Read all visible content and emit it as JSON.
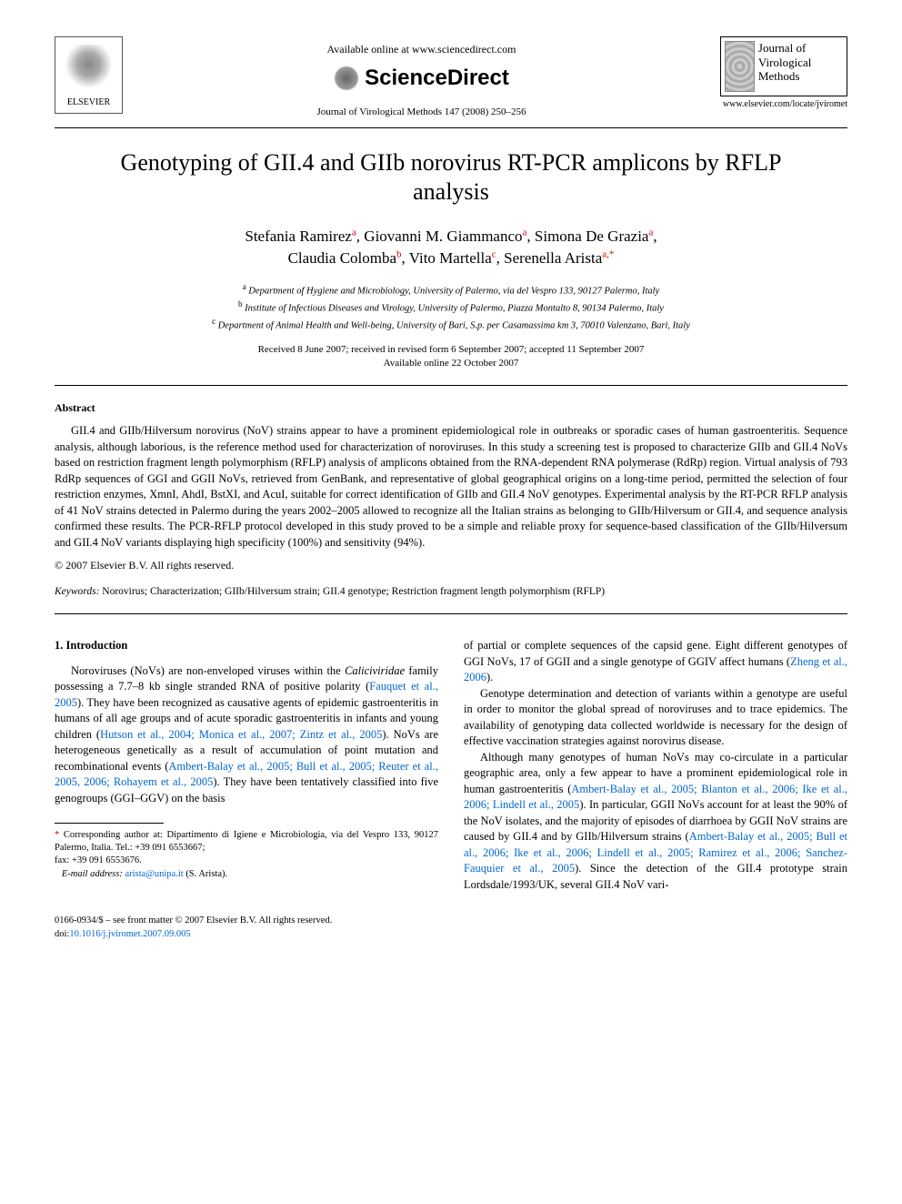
{
  "header": {
    "publisher_name": "ELSEVIER",
    "available_text": "Available online at www.sciencedirect.com",
    "sd_brand": "ScienceDirect",
    "journal_ref": "Journal of Virological Methods 147 (2008) 250–256",
    "journal_box_title": "Journal of Virological Methods",
    "journal_url": "www.elsevier.com/locate/jviromet"
  },
  "title": "Genotyping of GII.4 and GIIb norovirus RT-PCR amplicons by RFLP analysis",
  "authors": [
    {
      "name": "Stefania Ramirez",
      "sup": "a"
    },
    {
      "name": "Giovanni M. Giammanco",
      "sup": "a"
    },
    {
      "name": "Simona De Grazia",
      "sup": "a"
    },
    {
      "name": "Claudia Colomba",
      "sup": "b"
    },
    {
      "name": "Vito Martella",
      "sup": "c"
    },
    {
      "name": "Serenella Arista",
      "sup": "a,",
      "star": true
    }
  ],
  "affiliations": [
    {
      "sup": "a",
      "text": "Department of Hygiene and Microbiology, University of Palermo, via del Vespro 133, 90127 Palermo, Italy"
    },
    {
      "sup": "b",
      "text": "Institute of Infectious Diseases and Virology, University of Palermo, Piazza Montalto 8, 90134 Palermo, Italy"
    },
    {
      "sup": "c",
      "text": "Department of Animal Health and Well-being, University of Bari, S.p. per Casamassima km 3, 70010 Valenzano, Bari, Italy"
    }
  ],
  "dates": {
    "line1": "Received 8 June 2007; received in revised form 6 September 2007; accepted 11 September 2007",
    "line2": "Available online 22 October 2007"
  },
  "abstract": {
    "heading": "Abstract",
    "text": "GII.4 and GIIb/Hilversum norovirus (NoV) strains appear to have a prominent epidemiological role in outbreaks or sporadic cases of human gastroenteritis. Sequence analysis, although laborious, is the reference method used for characterization of noroviruses. In this study a screening test is proposed to characterize GIIb and GII.4 NoVs based on restriction fragment length polymorphism (RFLP) analysis of amplicons obtained from the RNA-dependent RNA polymerase (RdRp) region. Virtual analysis of 793 RdRp sequences of GGI and GGII NoVs, retrieved from GenBank, and representative of global geographical origins on a long-time period, permitted the selection of four restriction enzymes, XmnI, AhdI, BstXI, and AcuI, suitable for correct identification of GIIb and GII.4 NoV genotypes. Experimental analysis by the RT-PCR RFLP analysis of 41 NoV strains detected in Palermo during the years 2002–2005 allowed to recognize all the Italian strains as belonging to GIIb/Hilversum or GII.4, and sequence analysis confirmed these results. The PCR-RFLP protocol developed in this study proved to be a simple and reliable proxy for sequence-based classification of the GIIb/Hilversum and GII.4 NoV variants displaying high specificity (100%) and sensitivity (94%).",
    "copyright": "© 2007 Elsevier B.V. All rights reserved."
  },
  "keywords": {
    "label": "Keywords:",
    "text": "Norovirus; Characterization; GIIb/Hilversum strain; GII.4 genotype; Restriction fragment length polymorphism (RFLP)"
  },
  "body": {
    "section1_heading": "1. Introduction",
    "col1_p1_a": "Noroviruses (NoVs) are non-enveloped viruses within the ",
    "col1_p1_ital": "Caliciviridae",
    "col1_p1_b": " family possessing a 7.7–8 kb single stranded RNA of positive polarity (",
    "col1_p1_ref1": "Fauquet et al., 2005",
    "col1_p1_c": "). They have been recognized as causative agents of epidemic gastroenteritis in humans of all age groups and of acute sporadic gastroenteritis in infants and young children (",
    "col1_p1_ref2": "Hutson et al., 2004; Monica et al., 2007; Zintz et al., 2005",
    "col1_p1_d": "). NoVs are heterogeneous genetically as a result of accumulation of point mutation and recombinational events (",
    "col1_p1_ref3": "Ambert-Balay et al., 2005; Bull et al., 2005; Reuter et al., 2005, 2006; Rohayem et al., 2005",
    "col1_p1_e": "). They have been tentatively classified into five genogroups (GGI–GGV) on the basis",
    "col2_p1_a": "of partial or complete sequences of the capsid gene. Eight different genotypes of GGI NoVs, 17 of GGII and a single genotype of GGIV affect humans (",
    "col2_p1_ref1": "Zheng et al., 2006",
    "col2_p1_b": ").",
    "col2_p2": "Genotype determination and detection of variants within a genotype are useful in order to monitor the global spread of noroviruses and to trace epidemics. The availability of genotyping data collected worldwide is necessary for the design of effective vaccination strategies against norovirus disease.",
    "col2_p3_a": "Although many genotypes of human NoVs may co-circulate in a particular geographic area, only a few appear to have a prominent epidemiological role in human gastroenteritis (",
    "col2_p3_ref1": "Ambert-Balay et al., 2005; Blanton et al., 2006; Ike et al., 2006; Lindell et al., 2005",
    "col2_p3_b": "). In particular, GGII NoVs account for at least the 90% of the NoV isolates, and the majority of episodes of diarrhoea by GGII NoV strains are caused by GII.4 and by GIIb/Hilversum strains (",
    "col2_p3_ref2": "Ambert-Balay et al., 2005; Bull et al., 2006; Ike et al., 2006; Lindell et al., 2005; Ramirez et al., 2006; Sanchez-Fauquier et al., 2005",
    "col2_p3_c": "). Since the detection of the GII.4 prototype strain Lordsdale/1993/UK, several GII.4 NoV vari-"
  },
  "footnote": {
    "corr_label": "Corresponding author at: Dipartimento di Igiene e Microbiologia, via del Vespro 133, 90127 Palermo, Italia. Tel.: +39 091 6553667;",
    "fax": "fax: +39 091 6553676.",
    "email_label": "E-mail address:",
    "email": "arista@unipa.it",
    "email_who": "(S. Arista)."
  },
  "footer": {
    "line1": "0166-0934/$ – see front matter © 2007 Elsevier B.V. All rights reserved.",
    "doi_label": "doi:",
    "doi": "10.1016/j.jviromet.2007.09.005"
  },
  "colors": {
    "link": "#0066cc",
    "sup": "#cc0000",
    "text": "#000000",
    "bg": "#ffffff"
  }
}
